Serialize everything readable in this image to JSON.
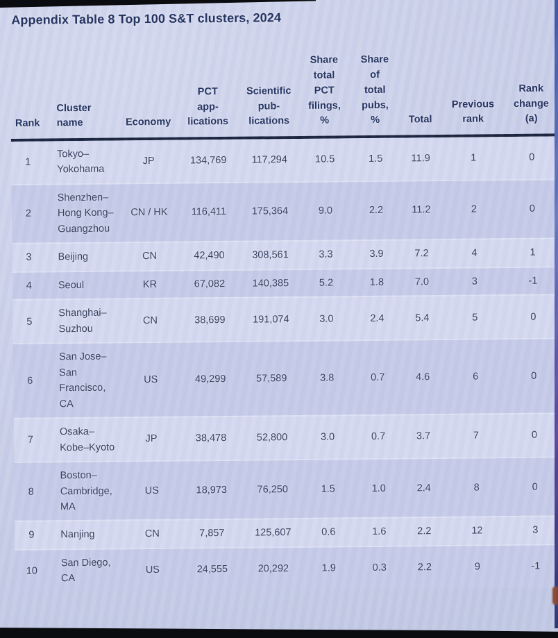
{
  "page": {
    "title": "Appendix Table 8 Top 100 S&T clusters, 2024"
  },
  "table": {
    "columns": [
      {
        "id": "rank",
        "label": "Rank"
      },
      {
        "id": "cluster",
        "label": "Cluster\nname"
      },
      {
        "id": "economy",
        "label": "Economy"
      },
      {
        "id": "pct_applications",
        "label": "PCT\napp-\nlications"
      },
      {
        "id": "scientific_publications",
        "label": "Scientific\npub-\nlications"
      },
      {
        "id": "share_total_pct_filings",
        "label": "Share\ntotal\nPCT\nfilings,\n%"
      },
      {
        "id": "share_of_total_pubs",
        "label": "Share\nof\ntotal\npubs,\n%"
      },
      {
        "id": "total",
        "label": "Total"
      },
      {
        "id": "previous_rank",
        "label": "Previous\nrank"
      },
      {
        "id": "rank_change",
        "label": "Rank\nchange\n(a)"
      }
    ],
    "rows": [
      {
        "rank": "1",
        "cluster": "Tokyo–\nYokohama",
        "economy": "JP",
        "pct_applications": "134,769",
        "scientific_publications": "117,294",
        "share_total_pct_filings": "10.5",
        "share_of_total_pubs": "1.5",
        "total": "11.9",
        "previous_rank": "1",
        "rank_change": "0"
      },
      {
        "rank": "2",
        "cluster": "Shenzhen–\nHong Kong–\nGuangzhou",
        "economy": "CN / HK",
        "pct_applications": "116,411",
        "scientific_publications": "175,364",
        "share_total_pct_filings": "9.0",
        "share_of_total_pubs": "2.2",
        "total": "11.2",
        "previous_rank": "2",
        "rank_change": "0"
      },
      {
        "rank": "3",
        "cluster": "Beijing",
        "economy": "CN",
        "pct_applications": "42,490",
        "scientific_publications": "308,561",
        "share_total_pct_filings": "3.3",
        "share_of_total_pubs": "3.9",
        "total": "7.2",
        "previous_rank": "4",
        "rank_change": "1"
      },
      {
        "rank": "4",
        "cluster": "Seoul",
        "economy": "KR",
        "pct_applications": "67,082",
        "scientific_publications": "140,385",
        "share_total_pct_filings": "5.2",
        "share_of_total_pubs": "1.8",
        "total": "7.0",
        "previous_rank": "3",
        "rank_change": "-1"
      },
      {
        "rank": "5",
        "cluster": "Shanghai–\nSuzhou",
        "economy": "CN",
        "pct_applications": "38,699",
        "scientific_publications": "191,074",
        "share_total_pct_filings": "3.0",
        "share_of_total_pubs": "2.4",
        "total": "5.4",
        "previous_rank": "5",
        "rank_change": "0"
      },
      {
        "rank": "6",
        "cluster": "San Jose–\nSan\nFrancisco,\nCA",
        "economy": "US",
        "pct_applications": "49,299",
        "scientific_publications": "57,589",
        "share_total_pct_filings": "3.8",
        "share_of_total_pubs": "0.7",
        "total": "4.6",
        "previous_rank": "6",
        "rank_change": "0"
      },
      {
        "rank": "7",
        "cluster": "Osaka–\nKobe–Kyoto",
        "economy": "JP",
        "pct_applications": "38,478",
        "scientific_publications": "52,800",
        "share_total_pct_filings": "3.0",
        "share_of_total_pubs": "0.7",
        "total": "3.7",
        "previous_rank": "7",
        "rank_change": "0"
      },
      {
        "rank": "8",
        "cluster": "Boston–\nCambridge,\nMA",
        "economy": "US",
        "pct_applications": "18,973",
        "scientific_publications": "76,250",
        "share_total_pct_filings": "1.5",
        "share_of_total_pubs": "1.0",
        "total": "2.4",
        "previous_rank": "8",
        "rank_change": "0"
      },
      {
        "rank": "9",
        "cluster": "Nanjing",
        "economy": "CN",
        "pct_applications": "7,857",
        "scientific_publications": "125,607",
        "share_total_pct_filings": "0.6",
        "share_of_total_pubs": "1.6",
        "total": "2.2",
        "previous_rank": "12",
        "rank_change": "3"
      },
      {
        "rank": "10",
        "cluster": "San Diego,\nCA",
        "economy": "US",
        "pct_applications": "24,555",
        "scientific_publications": "20,292",
        "share_total_pct_filings": "1.9",
        "share_of_total_pubs": "0.3",
        "total": "2.2",
        "previous_rank": "9",
        "rank_change": "-1"
      }
    ]
  },
  "colors": {
    "bg": "#cdd3ec",
    "row-light": "#d4d8ef",
    "row-dark": "#c4cae7",
    "header-text": "#1d2c5a",
    "body-text": "#313b59",
    "rule": "#151e38",
    "edge-strip": "#4a5fae",
    "frame": "#0b0c10"
  }
}
